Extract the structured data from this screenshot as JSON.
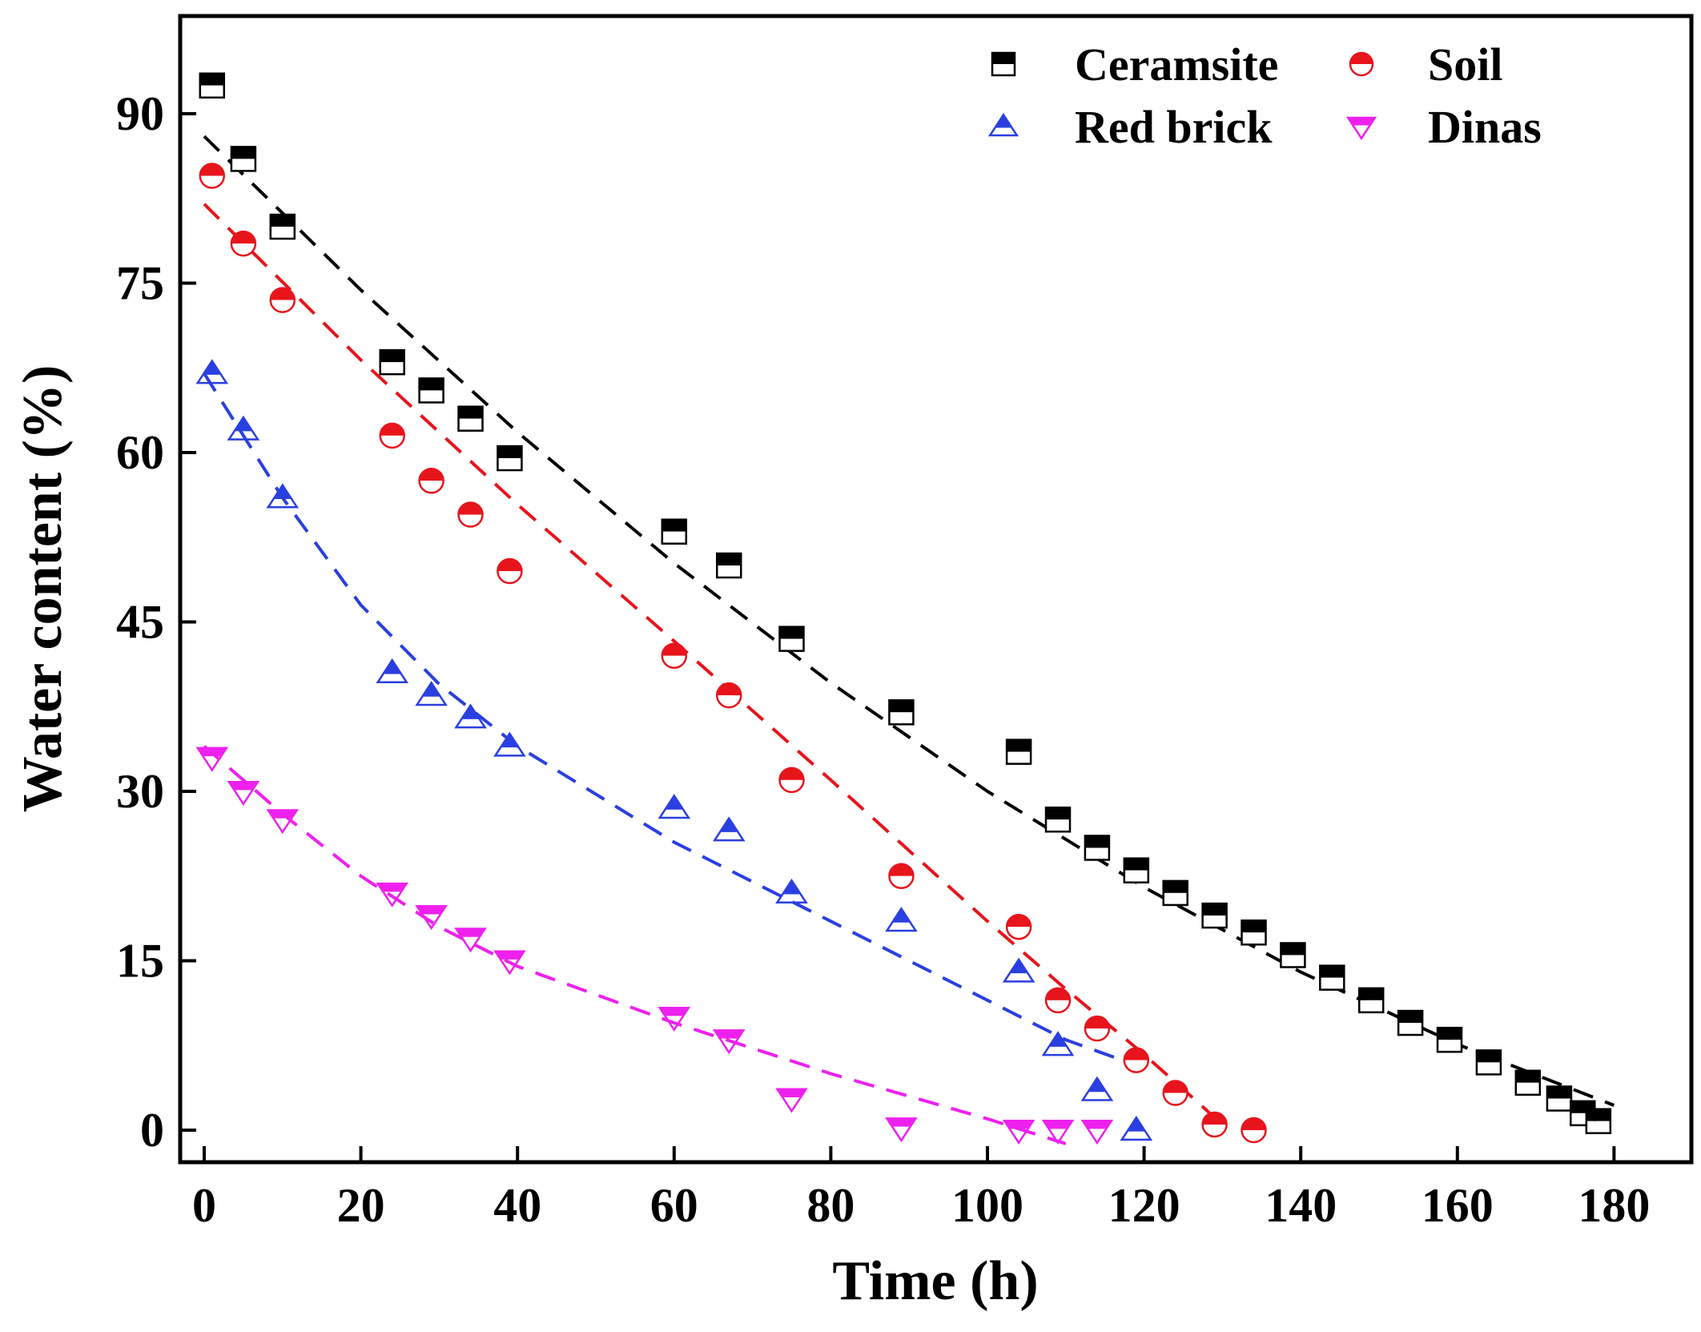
{
  "chart_data": {
    "type": "scatter",
    "xlabel": "Time (h)",
    "ylabel": "Water content (%)",
    "xlim": [
      -3,
      186
    ],
    "ylim": [
      -3,
      98
    ],
    "xticks": [
      0,
      20,
      40,
      60,
      80,
      100,
      120,
      140,
      160,
      180
    ],
    "yticks": [
      0,
      15,
      30,
      45,
      60,
      75,
      90
    ],
    "legend_position": "top-right",
    "series": [
      {
        "name": "Ceramsite",
        "marker": "square",
        "color": "#000000",
        "points": [
          [
            1,
            92.5
          ],
          [
            5,
            86
          ],
          [
            10,
            80
          ],
          [
            24,
            68
          ],
          [
            29,
            65.5
          ],
          [
            34,
            63
          ],
          [
            39,
            59.5
          ],
          [
            60,
            53
          ],
          [
            67,
            50
          ],
          [
            75,
            43.5
          ],
          [
            89,
            37
          ],
          [
            104,
            33.5
          ],
          [
            109,
            27.5
          ],
          [
            114,
            25
          ],
          [
            119,
            23
          ],
          [
            124,
            21
          ],
          [
            129,
            19
          ],
          [
            134,
            17.5
          ],
          [
            139,
            15.5
          ],
          [
            144,
            13.5
          ],
          [
            149,
            11.5
          ],
          [
            154,
            9.5
          ],
          [
            159,
            8
          ],
          [
            164,
            6
          ],
          [
            169,
            4.2
          ],
          [
            173,
            2.8
          ],
          [
            176,
            1.5
          ],
          [
            178,
            0.8
          ]
        ],
        "fit_color": "#000000",
        "fit": [
          [
            0,
            88
          ],
          [
            20,
            74.4
          ],
          [
            40,
            61.8
          ],
          [
            60,
            50.2
          ],
          [
            80,
            39.6
          ],
          [
            100,
            30
          ],
          [
            120,
            21.5
          ],
          [
            140,
            14
          ],
          [
            160,
            7.6
          ],
          [
            180,
            2.2
          ]
        ]
      },
      {
        "name": "Soil",
        "marker": "circle",
        "color": "#e8141c",
        "points": [
          [
            1,
            84.5
          ],
          [
            5,
            78.5
          ],
          [
            10,
            73.5
          ],
          [
            24,
            61.5
          ],
          [
            29,
            57.5
          ],
          [
            34,
            54.5
          ],
          [
            39,
            49.5
          ],
          [
            60,
            42
          ],
          [
            67,
            38.5
          ],
          [
            75,
            31
          ],
          [
            89,
            22.5
          ],
          [
            104,
            18
          ],
          [
            109,
            11.5
          ],
          [
            114,
            9
          ],
          [
            119,
            6.2
          ],
          [
            124,
            3.3
          ],
          [
            129,
            0.5
          ],
          [
            134,
            0
          ]
        ],
        "fit_color": "#e8141c",
        "fit": [
          [
            0,
            82
          ],
          [
            20,
            68.2
          ],
          [
            40,
            55.4
          ],
          [
            60,
            43.3
          ],
          [
            80,
            31
          ],
          [
            100,
            18.5
          ],
          [
            110,
            12.5
          ],
          [
            120,
            6.7
          ],
          [
            126,
            3
          ],
          [
            130,
            0.5
          ]
        ]
      },
      {
        "name": "Red brick",
        "marker": "triangle-up",
        "color": "#2a3fe0",
        "points": [
          [
            1,
            67
          ],
          [
            5,
            62
          ],
          [
            10,
            56
          ],
          [
            24,
            40.5
          ],
          [
            29,
            38.5
          ],
          [
            34,
            36.5
          ],
          [
            39,
            34
          ],
          [
            60,
            28.5
          ],
          [
            67,
            26.5
          ],
          [
            75,
            21
          ],
          [
            89,
            18.5
          ],
          [
            104,
            14
          ],
          [
            109,
            7.5
          ],
          [
            114,
            3.5
          ],
          [
            119,
            0
          ]
        ],
        "fit_color": "#2a3fe0",
        "fit": [
          [
            0,
            67
          ],
          [
            10,
            56
          ],
          [
            20,
            46.5
          ],
          [
            30,
            39.5
          ],
          [
            40,
            34
          ],
          [
            60,
            25.5
          ],
          [
            80,
            18.5
          ],
          [
            100,
            11.5
          ],
          [
            110,
            8
          ],
          [
            120,
            5.5
          ]
        ]
      },
      {
        "name": "Dinas",
        "marker": "triangle-down",
        "color": "#ee20ee",
        "points": [
          [
            1,
            33
          ],
          [
            5,
            30
          ],
          [
            10,
            27.5
          ],
          [
            24,
            21
          ],
          [
            29,
            19
          ],
          [
            34,
            17
          ],
          [
            39,
            15
          ],
          [
            60,
            10
          ],
          [
            67,
            8
          ],
          [
            75,
            2.8
          ],
          [
            89,
            0.2
          ],
          [
            104,
            0
          ],
          [
            109,
            0
          ],
          [
            114,
            0
          ]
        ],
        "fit_color": "#ee20ee",
        "fit": [
          [
            0,
            34
          ],
          [
            10,
            28
          ],
          [
            20,
            22.5
          ],
          [
            30,
            18
          ],
          [
            40,
            14.5
          ],
          [
            60,
            9.5
          ],
          [
            80,
            5
          ],
          [
            100,
            1
          ],
          [
            110,
            -1.2
          ]
        ]
      }
    ]
  }
}
